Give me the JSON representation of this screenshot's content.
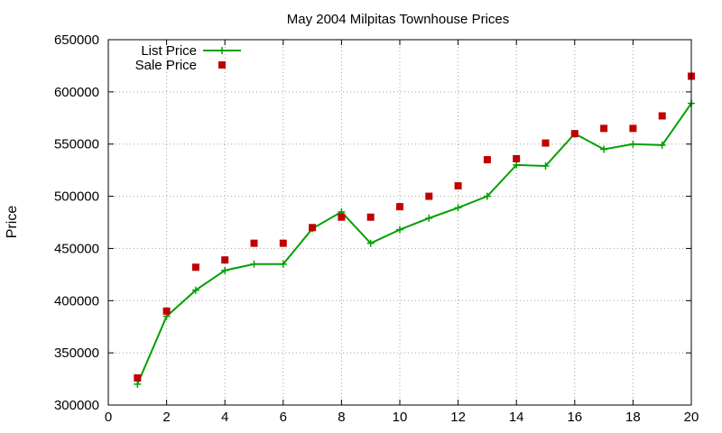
{
  "chart_data": {
    "type": "line",
    "title": "May 2004 Milpitas Townhouse Prices",
    "xlabel": "",
    "ylabel": "Price",
    "xlim": [
      0,
      20
    ],
    "ylim": [
      300000,
      650000
    ],
    "xticks": [
      0,
      2,
      4,
      6,
      8,
      10,
      12,
      14,
      16,
      18,
      20
    ],
    "yticks": [
      300000,
      350000,
      400000,
      450000,
      500000,
      550000,
      600000,
      650000
    ],
    "grid": true,
    "legend_position": "top-left",
    "series": [
      {
        "name": "List Price",
        "style": "linespoints",
        "marker": "plus",
        "color": "#00a000",
        "x": [
          1,
          2,
          3,
          4,
          5,
          6,
          7,
          8,
          9,
          10,
          11,
          12,
          13,
          14,
          15,
          16,
          17,
          18,
          19,
          20
        ],
        "values": [
          320000,
          385000,
          410000,
          429000,
          435000,
          435000,
          469000,
          485000,
          455000,
          468000,
          479000,
          489000,
          500000,
          530000,
          529000,
          560000,
          545000,
          550000,
          549000,
          589000
        ]
      },
      {
        "name": "Sale Price",
        "style": "points",
        "marker": "square",
        "color": "#c00000",
        "x": [
          1,
          2,
          3,
          4,
          5,
          6,
          7,
          8,
          9,
          10,
          11,
          12,
          13,
          14,
          15,
          16,
          17,
          18,
          19,
          20
        ],
        "values": [
          326000,
          390000,
          432000,
          439000,
          455000,
          455000,
          470000,
          480000,
          480000,
          490000,
          500000,
          510000,
          535000,
          536000,
          551000,
          560000,
          565000,
          565000,
          577000,
          615000
        ]
      }
    ]
  }
}
